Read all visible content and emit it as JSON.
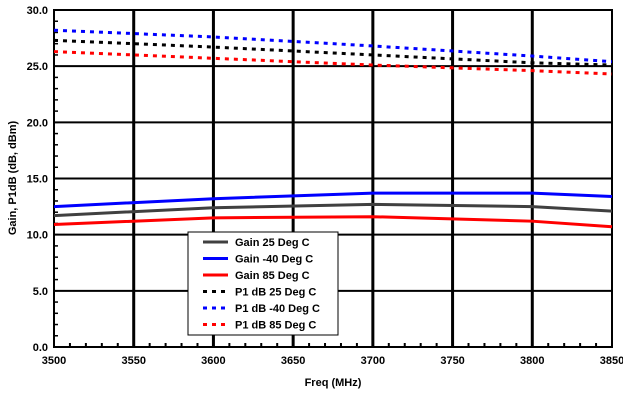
{
  "chart_data": {
    "type": "line",
    "title": "",
    "xlabel": "Freq (MHz)",
    "ylabel": "Gain, P1dB (dB, dBm)",
    "xlim": [
      3500,
      3850
    ],
    "ylim": [
      0,
      30
    ],
    "x_ticks": [
      "3500",
      "3550",
      "3600",
      "3650",
      "3700",
      "3750",
      "3800",
      "3850"
    ],
    "y_ticks": [
      "0.0",
      "5.0",
      "10.0",
      "15.0",
      "20.0",
      "25.0",
      "30.0"
    ],
    "grid": true,
    "legend_position": "bottom-center",
    "x": [
      3500,
      3600,
      3700,
      3800,
      3850
    ],
    "series": [
      {
        "name": "Gain 25 Deg C",
        "color": "#404040",
        "dash": "solid",
        "values": [
          11.7,
          12.4,
          12.7,
          12.5,
          12.1
        ]
      },
      {
        "name": "Gain -40 Deg C",
        "color": "#0000ff",
        "dash": "solid",
        "values": [
          12.5,
          13.2,
          13.7,
          13.7,
          13.4
        ]
      },
      {
        "name": "Gain 85 Deg C",
        "color": "#ff0000",
        "dash": "solid",
        "values": [
          10.9,
          11.5,
          11.6,
          11.2,
          10.7
        ]
      },
      {
        "name": "P1 dB 25 Deg C",
        "color": "#000000",
        "dash": "dotted",
        "values": [
          27.3,
          26.7,
          26.0,
          25.3,
          25.1
        ]
      },
      {
        "name": "P1 dB -40 Deg C",
        "color": "#0000ff",
        "dash": "dotted",
        "values": [
          28.2,
          27.6,
          26.8,
          25.9,
          25.4
        ]
      },
      {
        "name": "P1 dB 85 Deg C",
        "color": "#ff0000",
        "dash": "dotted",
        "values": [
          26.3,
          25.7,
          25.1,
          24.6,
          24.3
        ]
      }
    ]
  }
}
